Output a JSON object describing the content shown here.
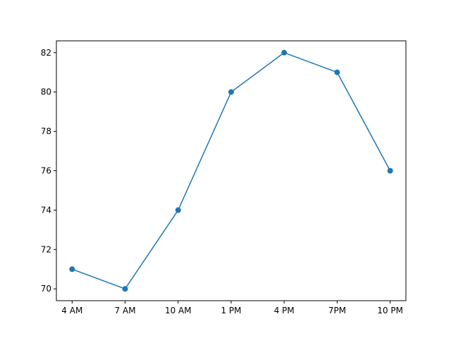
{
  "chart_data": {
    "type": "line",
    "title": "",
    "xlabel": "",
    "ylabel": "",
    "categories": [
      "4 AM",
      "7 AM",
      "10 AM",
      "1 PM",
      "4 PM",
      "7PM",
      "10 PM"
    ],
    "series": [
      {
        "values": [
          71,
          70,
          74,
          80,
          82,
          81,
          76
        ],
        "color": "#1f77b4",
        "marker": "circle"
      }
    ],
    "ylim": [
      69.4,
      82.6
    ],
    "yticks": [
      70,
      72,
      74,
      76,
      78,
      80,
      82
    ],
    "grid": false,
    "legend": "none"
  }
}
